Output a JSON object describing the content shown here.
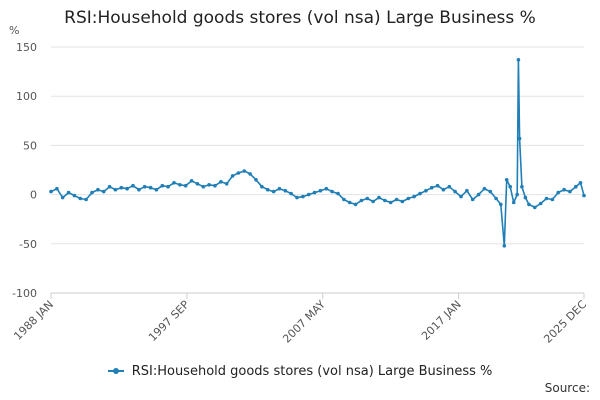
{
  "title": "RSI:Household goods stores (vol nsa) Large Business %",
  "source_label": "Source:",
  "colors": {
    "series": "#1f7fb6",
    "grid": "#e3e3e3",
    "axis": "#cccccc"
  },
  "chart_data": {
    "type": "line",
    "title": "RSI:Household goods stores (vol nsa) Large Business %",
    "ylabel": "%",
    "ylim": [
      -100,
      150
    ],
    "yticks": [
      -100,
      -50,
      0,
      50,
      100,
      150
    ],
    "grid": "horizontal",
    "legend_position": "bottom",
    "x_range": [
      "1988 JAN",
      "2025 DEC"
    ],
    "x_tick_labels": [
      "1988 JAN",
      "1997 SEP",
      "2007 MAY",
      "2017 JAN",
      "2025 DEC"
    ],
    "series": [
      {
        "name": "RSI:Household goods stores (vol nsa) Large Business %",
        "points": [
          {
            "x": "1988-01",
            "y": 3
          },
          {
            "x": "1988-06",
            "y": 6
          },
          {
            "x": "1988-11",
            "y": -3
          },
          {
            "x": "1989-04",
            "y": 2
          },
          {
            "x": "1989-09",
            "y": -1
          },
          {
            "x": "1990-02",
            "y": -4
          },
          {
            "x": "1990-07",
            "y": -5
          },
          {
            "x": "1990-12",
            "y": 2
          },
          {
            "x": "1991-05",
            "y": 5
          },
          {
            "x": "1991-10",
            "y": 3
          },
          {
            "x": "1992-03",
            "y": 8
          },
          {
            "x": "1992-08",
            "y": 5
          },
          {
            "x": "1993-01",
            "y": 7
          },
          {
            "x": "1993-06",
            "y": 6
          },
          {
            "x": "1993-11",
            "y": 9
          },
          {
            "x": "1994-04",
            "y": 5
          },
          {
            "x": "1994-09",
            "y": 8
          },
          {
            "x": "1995-02",
            "y": 7
          },
          {
            "x": "1995-07",
            "y": 5
          },
          {
            "x": "1995-12",
            "y": 9
          },
          {
            "x": "1996-05",
            "y": 8
          },
          {
            "x": "1996-10",
            "y": 12
          },
          {
            "x": "1997-03",
            "y": 10
          },
          {
            "x": "1997-08",
            "y": 9
          },
          {
            "x": "1998-01",
            "y": 14
          },
          {
            "x": "1998-06",
            "y": 11
          },
          {
            "x": "1998-11",
            "y": 8
          },
          {
            "x": "1999-04",
            "y": 10
          },
          {
            "x": "1999-09",
            "y": 9
          },
          {
            "x": "2000-02",
            "y": 13
          },
          {
            "x": "2000-07",
            "y": 11
          },
          {
            "x": "2000-12",
            "y": 19
          },
          {
            "x": "2001-05",
            "y": 22
          },
          {
            "x": "2001-10",
            "y": 24
          },
          {
            "x": "2002-03",
            "y": 21
          },
          {
            "x": "2002-08",
            "y": 15
          },
          {
            "x": "2003-01",
            "y": 8
          },
          {
            "x": "2003-06",
            "y": 5
          },
          {
            "x": "2003-11",
            "y": 3
          },
          {
            "x": "2004-04",
            "y": 6
          },
          {
            "x": "2004-09",
            "y": 4
          },
          {
            "x": "2005-02",
            "y": 1
          },
          {
            "x": "2005-07",
            "y": -3
          },
          {
            "x": "2005-12",
            "y": -2
          },
          {
            "x": "2006-05",
            "y": 0
          },
          {
            "x": "2006-10",
            "y": 2
          },
          {
            "x": "2007-03",
            "y": 4
          },
          {
            "x": "2007-08",
            "y": 6
          },
          {
            "x": "2008-01",
            "y": 3
          },
          {
            "x": "2008-06",
            "y": 1
          },
          {
            "x": "2008-11",
            "y": -5
          },
          {
            "x": "2009-04",
            "y": -8
          },
          {
            "x": "2009-09",
            "y": -10
          },
          {
            "x": "2010-02",
            "y": -6
          },
          {
            "x": "2010-07",
            "y": -4
          },
          {
            "x": "2010-12",
            "y": -7
          },
          {
            "x": "2011-05",
            "y": -3
          },
          {
            "x": "2011-10",
            "y": -6
          },
          {
            "x": "2012-03",
            "y": -8
          },
          {
            "x": "2012-08",
            "y": -5
          },
          {
            "x": "2013-01",
            "y": -7
          },
          {
            "x": "2013-06",
            "y": -4
          },
          {
            "x": "2013-11",
            "y": -2
          },
          {
            "x": "2014-04",
            "y": 1
          },
          {
            "x": "2014-09",
            "y": 4
          },
          {
            "x": "2015-02",
            "y": 7
          },
          {
            "x": "2015-07",
            "y": 9
          },
          {
            "x": "2015-12",
            "y": 5
          },
          {
            "x": "2016-05",
            "y": 8
          },
          {
            "x": "2016-10",
            "y": 3
          },
          {
            "x": "2017-03",
            "y": -2
          },
          {
            "x": "2017-08",
            "y": 4
          },
          {
            "x": "2018-01",
            "y": -5
          },
          {
            "x": "2018-06",
            "y": 0
          },
          {
            "x": "2018-11",
            "y": 6
          },
          {
            "x": "2019-04",
            "y": 3
          },
          {
            "x": "2019-09",
            "y": -4
          },
          {
            "x": "2020-01",
            "y": -10
          },
          {
            "x": "2020-04",
            "y": -52
          },
          {
            "x": "2020-06",
            "y": 15
          },
          {
            "x": "2020-09",
            "y": 8
          },
          {
            "x": "2020-12",
            "y": -8
          },
          {
            "x": "2021-03",
            "y": 0
          },
          {
            "x": "2021-04",
            "y": 137
          },
          {
            "x": "2021-05",
            "y": 57
          },
          {
            "x": "2021-07",
            "y": 8
          },
          {
            "x": "2021-10",
            "y": -3
          },
          {
            "x": "2022-01",
            "y": -10
          },
          {
            "x": "2022-06",
            "y": -13
          },
          {
            "x": "2022-11",
            "y": -9
          },
          {
            "x": "2023-04",
            "y": -4
          },
          {
            "x": "2023-09",
            "y": -5
          },
          {
            "x": "2024-02",
            "y": 2
          },
          {
            "x": "2024-07",
            "y": 5
          },
          {
            "x": "2024-12",
            "y": 3
          },
          {
            "x": "2025-05",
            "y": 8
          },
          {
            "x": "2025-09",
            "y": 12
          },
          {
            "x": "2025-12",
            "y": -1
          }
        ]
      }
    ]
  }
}
